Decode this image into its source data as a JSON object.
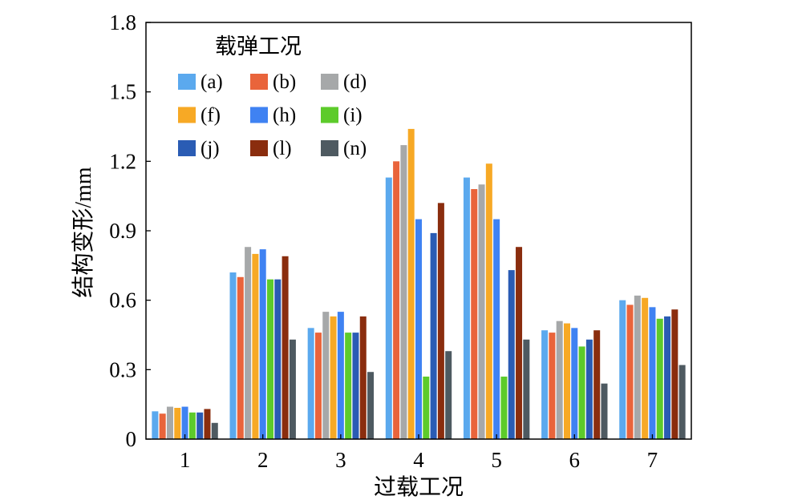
{
  "chart_data": {
    "type": "bar",
    "categories": [
      "1",
      "2",
      "3",
      "4",
      "5",
      "6",
      "7"
    ],
    "xlabel": "过载工况",
    "ylabel": "结构变形/mm",
    "ylim": [
      0,
      1.8
    ],
    "yticks": [
      "0",
      "0.3",
      "0.6",
      "0.9",
      "1.2",
      "1.5",
      "1.8"
    ],
    "grid": false,
    "legend": {
      "title": "载弹工况",
      "position": "top-left"
    },
    "series": [
      {
        "name": "(a)",
        "color": "#5ba9ee",
        "values": [
          0.12,
          0.72,
          0.48,
          1.13,
          1.13,
          0.47,
          0.6
        ]
      },
      {
        "name": "(b)",
        "color": "#e9643b",
        "values": [
          0.11,
          0.7,
          0.46,
          1.2,
          1.08,
          0.46,
          0.58
        ]
      },
      {
        "name": "(d)",
        "color": "#a6a8a9",
        "values": [
          0.14,
          0.83,
          0.55,
          1.27,
          1.1,
          0.51,
          0.62
        ]
      },
      {
        "name": "(f)",
        "color": "#f7a925",
        "values": [
          0.135,
          0.8,
          0.53,
          1.34,
          1.19,
          0.5,
          0.61
        ]
      },
      {
        "name": "(h)",
        "color": "#3f82f2",
        "values": [
          0.14,
          0.82,
          0.55,
          0.95,
          0.95,
          0.48,
          0.57
        ]
      },
      {
        "name": "(i)",
        "color": "#5dcb2b",
        "values": [
          0.115,
          0.69,
          0.46,
          0.27,
          0.27,
          0.4,
          0.52
        ]
      },
      {
        "name": "(j)",
        "color": "#2a5cb4",
        "values": [
          0.115,
          0.69,
          0.46,
          0.89,
          0.73,
          0.43,
          0.53
        ]
      },
      {
        "name": "(l)",
        "color": "#8a2d0e",
        "values": [
          0.13,
          0.79,
          0.53,
          1.02,
          0.83,
          0.47,
          0.56
        ]
      },
      {
        "name": "(n)",
        "color": "#4e5a61",
        "values": [
          0.07,
          0.43,
          0.29,
          0.38,
          0.43,
          0.24,
          0.32
        ]
      }
    ]
  }
}
